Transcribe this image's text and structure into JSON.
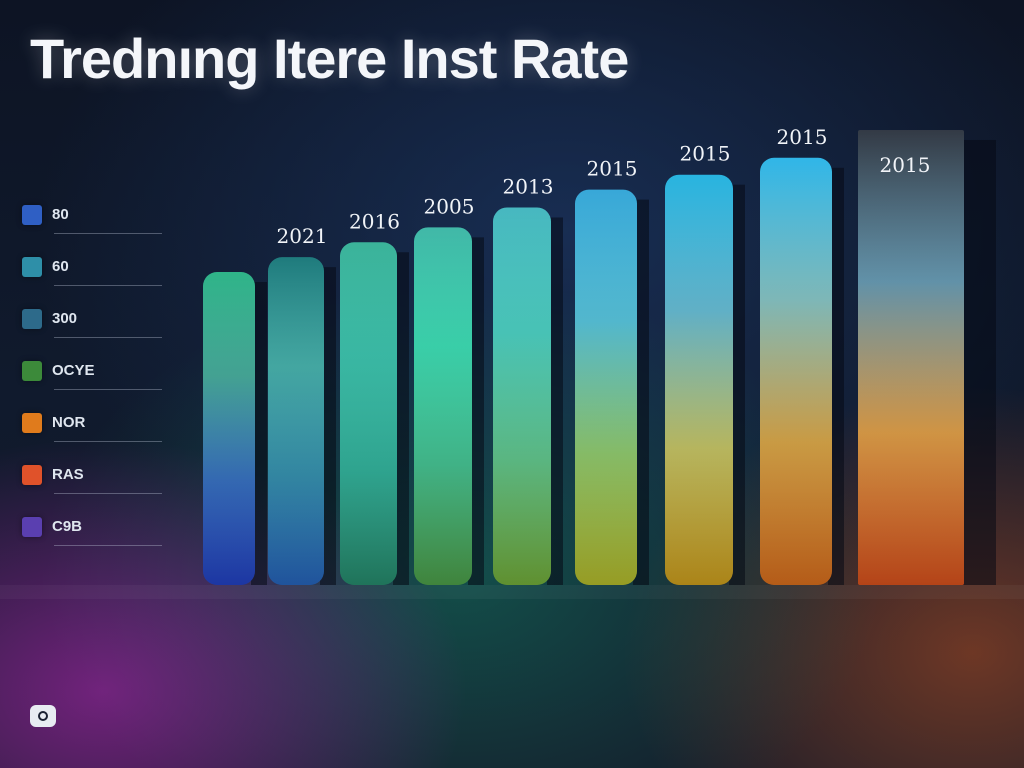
{
  "title": "Trednıng Itere Inst Rate",
  "legend": [
    {
      "label": "80",
      "color": "#2f5fc4"
    },
    {
      "label": "60",
      "color": "#2e8fa8"
    },
    {
      "label": "300",
      "color": "#2d6a8a"
    },
    {
      "label": "OCYE",
      "color": "#3c8a3a"
    },
    {
      "label": "NOR",
      "color": "#e07b1c"
    },
    {
      "label": "RAS",
      "color": "#e0522a"
    },
    {
      "label": "C9B",
      "color": "#5a3fb0"
    }
  ],
  "chart_data": {
    "type": "bar",
    "categories": [
      "",
      "",
      "",
      "",
      "",
      "",
      "",
      "",
      ""
    ],
    "series": [
      {
        "values": [
          315,
          330,
          345,
          360,
          380,
          398,
          413,
          430,
          458
        ]
      }
    ],
    "data_labels": [
      "",
      "2021",
      "2016",
      "2005",
      "2013",
      "2015",
      "2015",
      "2015",
      "2015"
    ],
    "tick_labels": [
      "",
      "",
      "",
      "",
      "",
      "",
      "",
      "",
      ""
    ],
    "ylim": [
      0,
      460
    ],
    "grid": false
  },
  "footer": {
    "text": "",
    "right_labels": [
      "",
      ""
    ]
  }
}
